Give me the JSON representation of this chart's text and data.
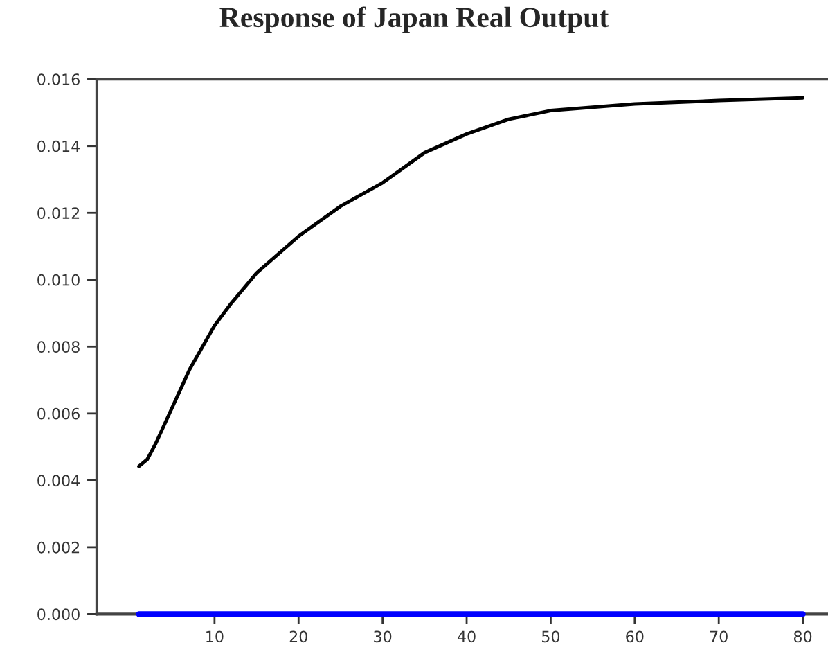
{
  "chart_data": {
    "type": "line",
    "title": "Response of Japan Real Output",
    "xlim": [
      -4,
      83
    ],
    "xticks": [
      10,
      20,
      30,
      40,
      50,
      60,
      70,
      80
    ],
    "ylim": [
      0,
      0.016
    ],
    "yticks": [
      {
        "value": 0,
        "label": "0.000"
      },
      {
        "value": 0.002,
        "label": "0.002"
      },
      {
        "value": 0.004,
        "label": "0.004"
      },
      {
        "value": 0.006,
        "label": "0.006"
      },
      {
        "value": 0.008,
        "label": "0.008"
      },
      {
        "value": 0.01,
        "label": "0.010"
      },
      {
        "value": 0.012,
        "label": "0.012"
      },
      {
        "value": 0.014,
        "label": "0.014"
      },
      {
        "value": 0.016,
        "label": "0.016"
      }
    ],
    "grid": false,
    "series": [
      {
        "color": "#000000",
        "x": [
          1,
          2,
          3,
          5,
          7,
          10,
          12,
          15,
          20,
          25,
          30,
          35,
          40,
          45,
          50,
          60,
          70,
          80
        ],
        "values": [
          0.00442,
          0.00463,
          0.0051,
          0.0062,
          0.0073,
          0.00863,
          0.0093,
          0.0102,
          0.0113,
          0.0122,
          0.0129,
          0.0138,
          0.01436,
          0.0148,
          0.01506,
          0.01526,
          0.01536,
          0.01544
        ]
      },
      {
        "color": "#0000ff",
        "x": [
          1,
          80
        ],
        "values": [
          0,
          0
        ]
      }
    ]
  }
}
